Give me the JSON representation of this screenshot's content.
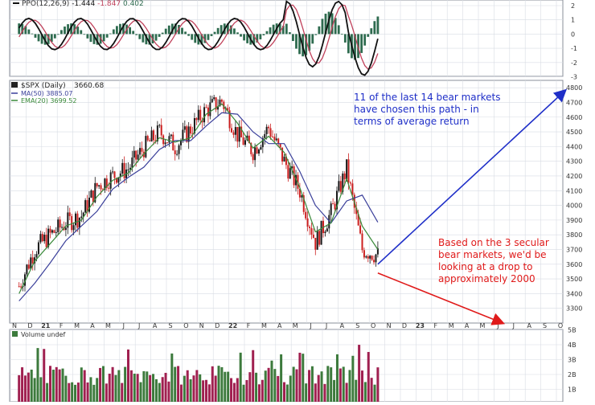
{
  "colors": {
    "up": "#1a1a1a",
    "down": "#cc1f1f",
    "ma50": "#3a3f9a",
    "ema20": "#3a8a3a",
    "ppo_line": "#111111",
    "ppo_signal": "#c0405a",
    "ppo_hist": "#2e6b4f",
    "vol_up": "#3c7a3c",
    "vol_down": "#a02050",
    "bull_arrow": "#1f2fc8",
    "bear_arrow": "#e01a1a",
    "bull_text": "#1f2fc8",
    "bear_text": "#e01a1a",
    "grid": "#d8dce4",
    "panel_border": "#8a8f99"
  },
  "ppo_panel": {
    "legend_name": "PPO(12,26,9)",
    "legend_v1": "-1.444",
    "legend_v2": "-1.847",
    "legend_v3": "0.402",
    "y_ticks": [
      "2",
      "1",
      "0",
      "-1",
      "-2",
      "-3"
    ]
  },
  "price_panel": {
    "legend_symbol": "$SPX (Daily)",
    "legend_value": "3660.68",
    "legend_ma": "MA(50) 3885.07",
    "legend_ema": "EMA(20) 3699.52",
    "y_ticks": [
      "4800",
      "4700",
      "4600",
      "4500",
      "4400",
      "4300",
      "4200",
      "4100",
      "4000",
      "3900",
      "3800",
      "3700",
      "3600",
      "3500",
      "3400",
      "3300"
    ]
  },
  "volume_panel": {
    "legend": "Volume undef",
    "y_ticks": [
      "5B",
      "4B",
      "3B",
      "2B",
      "1B"
    ]
  },
  "x_axis": {
    "labels": [
      "N",
      "D",
      "21",
      "F",
      "M",
      "A",
      "M",
      "J",
      "J",
      "A",
      "S",
      "O",
      "N",
      "D",
      "22",
      "F",
      "M",
      "A",
      "M",
      "J",
      "J",
      "A",
      "S",
      "O",
      "N",
      "D",
      "23",
      "F",
      "M",
      "A",
      "M",
      "J",
      "J",
      "A",
      "S",
      "O"
    ]
  },
  "annotations": {
    "bull": "11 of the last 14 bear markets have chosen this path - in terms of average return",
    "bear": "Based on the 3 secular bear markets, we'd be looking at a drop to approximately 2000"
  },
  "chart_data": {
    "type": "line",
    "symbol": "$SPX",
    "ylim": [
      3200,
      4850
    ],
    "x_months": [
      "2020-11",
      "2020-12",
      "2021-01",
      "2021-02",
      "2021-03",
      "2021-04",
      "2021-05",
      "2021-06",
      "2021-07",
      "2021-08",
      "2021-09",
      "2021-10",
      "2021-11",
      "2021-12",
      "2022-01",
      "2022-02",
      "2022-03",
      "2022-04",
      "2022-05",
      "2022-06",
      "2022-07",
      "2022-08",
      "2022-09",
      "2022-10"
    ],
    "series": [
      {
        "name": "$SPX (Daily)",
        "values": [
          3450,
          3700,
          3800,
          3880,
          3930,
          4130,
          4200,
          4250,
          4390,
          4500,
          4400,
          4520,
          4650,
          4710,
          4480,
          4370,
          4530,
          4300,
          4100,
          3750,
          3950,
          4250,
          3700,
          3660
        ]
      },
      {
        "name": "MA(50)",
        "values": [
          3350,
          3470,
          3610,
          3760,
          3860,
          3960,
          4110,
          4190,
          4260,
          4380,
          4440,
          4440,
          4540,
          4630,
          4620,
          4500,
          4420,
          4420,
          4230,
          4000,
          3880,
          4030,
          4070,
          3885
        ]
      },
      {
        "name": "EMA(20)",
        "values": [
          3400,
          3620,
          3740,
          3860,
          3900,
          4060,
          4170,
          4220,
          4350,
          4460,
          4430,
          4460,
          4620,
          4690,
          4560,
          4390,
          4470,
          4360,
          4120,
          3820,
          3880,
          4180,
          3860,
          3700
        ]
      }
    ],
    "projections": [
      {
        "name": "bull",
        "from": [
          "2022-10",
          3600
        ],
        "to": [
          "2023-10",
          4780
        ]
      },
      {
        "name": "bear",
        "from": [
          "2022-10",
          3540
        ],
        "to": [
          "2023-06",
          3200
        ]
      }
    ]
  }
}
